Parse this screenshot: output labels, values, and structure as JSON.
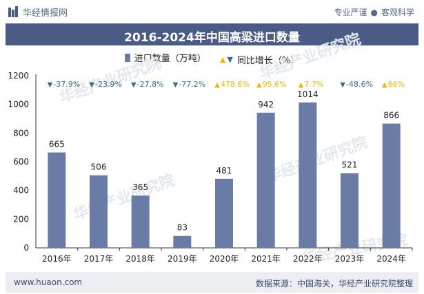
{
  "header": {
    "brand": "华经情报网",
    "slogan_left": "专业严谨",
    "slogan_right": "客观科学"
  },
  "footer": {
    "site": "www.huaon.com",
    "source": "数据来源：中国海关，华经产业研究院整理"
  },
  "watermark": "华经产业研究院",
  "colors": {
    "bar": "#6a7ca6",
    "down": "#3d6b8a",
    "up": "#f5b800",
    "title_bg": "#4a5b86"
  },
  "chart_data": {
    "type": "bar",
    "title": "2016-2024年中国高粱进口数量",
    "categories": [
      "2016年",
      "2017年",
      "2018年",
      "2019年",
      "2020年",
      "2021年",
      "2022年",
      "2023年",
      "2024年"
    ],
    "series": [
      {
        "name": "进口数量（万吨）",
        "values": [
          665,
          506,
          365,
          83,
          481,
          942,
          1014,
          521,
          866
        ]
      },
      {
        "name": "同比增长（%）",
        "values": [
          -37.9,
          -23.9,
          -27.8,
          -77.2,
          478.6,
          95.6,
          7.7,
          -48.6,
          66
        ]
      }
    ],
    "growth_labels": [
      "-37.9%",
      "-23.9%",
      "-27.8%",
      "-77.2%",
      "478.6%",
      "95.6%",
      "7.7%",
      "-48.6%",
      "66%"
    ],
    "ylim": [
      0,
      1200
    ],
    "yticks": [
      0,
      200,
      400,
      600,
      800,
      1000,
      1200
    ],
    "legend_position": "top-center",
    "grid": false
  }
}
